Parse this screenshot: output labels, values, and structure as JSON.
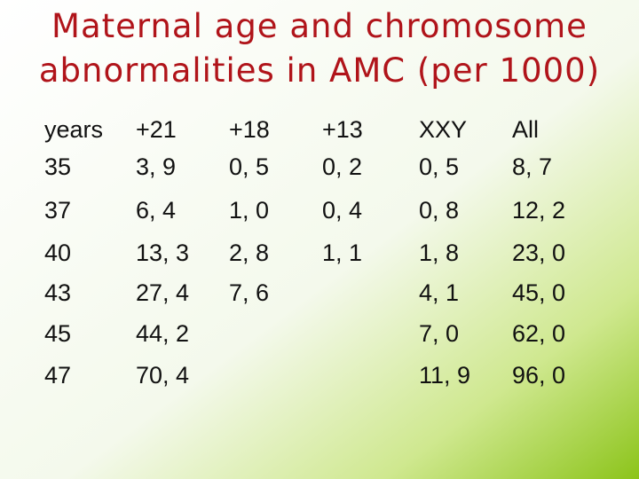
{
  "header": {
    "title": [
      "Maternal age and chromosome",
      "abnormalities in AMC (per 1000)"
    ]
  },
  "table": {
    "columns": [
      "years",
      "+21",
      "+18",
      "+13",
      "XXY",
      "All"
    ],
    "rows": [
      [
        "35",
        "3, 9",
        "0, 5",
        "0, 2",
        "0, 5",
        "8, 7"
      ],
      [
        "37",
        "6, 4",
        "1, 0",
        "0, 4",
        "0, 8",
        "12, 2"
      ],
      [
        "40",
        "13, 3",
        "2, 8",
        "1, 1",
        "1, 8",
        "23, 0"
      ],
      [
        "43",
        "27, 4",
        "7, 6",
        null,
        "4, 1",
        "45, 0"
      ],
      [
        "45",
        "44, 2",
        null,
        null,
        "7, 0",
        "62, 0"
      ],
      [
        "47",
        "70, 4",
        null,
        null,
        "11, 9",
        "96, 0"
      ]
    ]
  }
}
